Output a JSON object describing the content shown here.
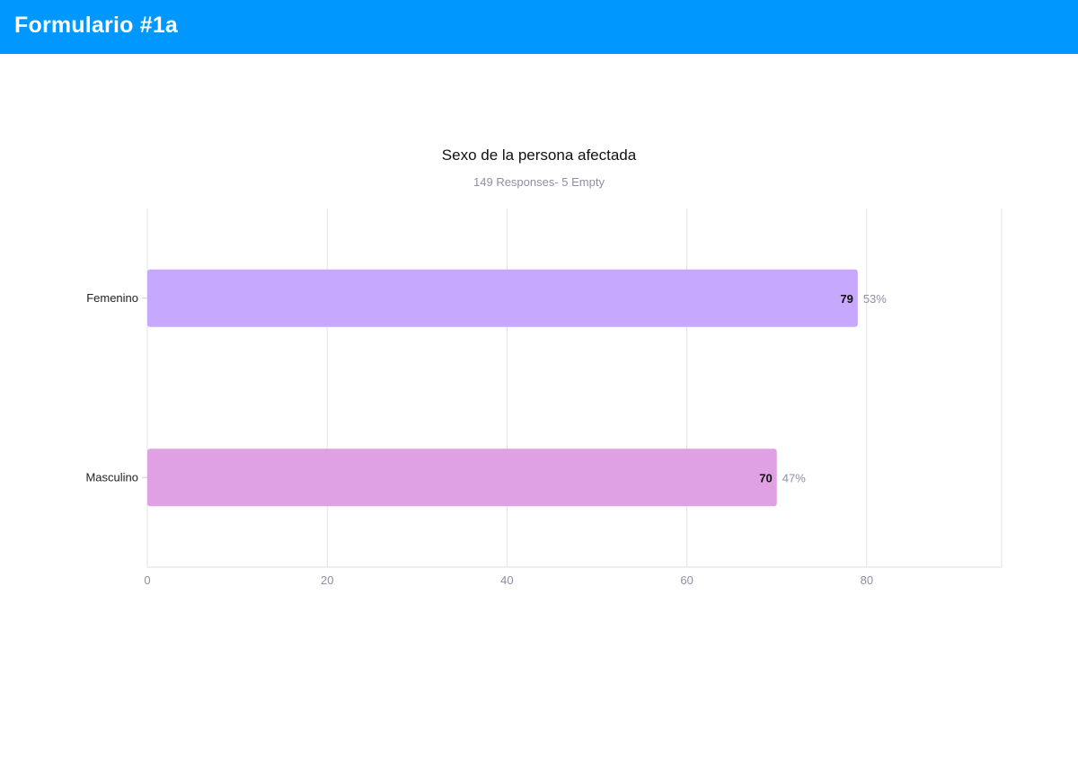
{
  "header": {
    "title": "Formulario #1a",
    "color": "#0098ff"
  },
  "chart_data": {
    "type": "bar",
    "orientation": "horizontal",
    "title": "Sexo de la persona afectada",
    "subtitle": "149 Responses- 5 Empty",
    "categories": [
      "Femenino",
      "Masculino"
    ],
    "values": [
      79,
      70
    ],
    "percent_labels": [
      "53%",
      "47%"
    ],
    "colors": [
      "#c6a9ff",
      "#e0a0e4"
    ],
    "x_ticks": [
      0,
      20,
      40,
      60,
      80
    ],
    "xlim": [
      0,
      95
    ],
    "grid": true,
    "xlabel": "",
    "ylabel": ""
  }
}
